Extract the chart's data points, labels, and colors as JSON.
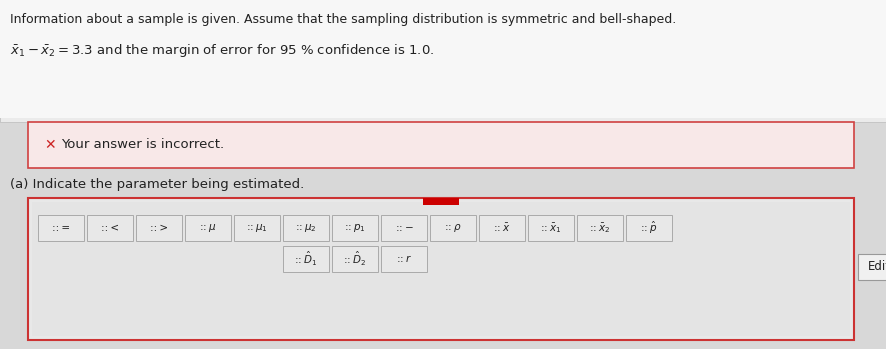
{
  "line1": "Information about a sample is given. Assume that the sampling distribution is symmetric and bell-shaped.",
  "line2_math": "$\\bar{x}_1 - \\bar{x}_2 = 3.3$ and the margin of error for 95 % confidence is 1.0.",
  "error_msg": "Your answer is incorrect.",
  "part_a": "(a) Indicate the parameter being estimated.",
  "edit_label": "Edit",
  "buttons_row1_math": [
    ":: =",
    ":: <",
    ":: >",
    ":: $\\mu$",
    ":: $\\mu_1$",
    ":: $\\mu_2$",
    ":: $p_1$",
    ":: $-$",
    ":: $\\rho$",
    ":: $\\bar{x}$",
    ":: $\\bar{x}_1$",
    ":: $\\bar{x}_2$",
    ":: $\\hat{p}$"
  ],
  "buttons_row2_math": [
    ":: $\\hat{D}_1$",
    ":: $\\hat{D}_2$",
    ":: $r$"
  ],
  "outer_bg": "#d8d8d8",
  "top_section_bg": "#e8e8e8",
  "white_bg": "#ffffff",
  "error_bg": "#f8e8e8",
  "error_border": "#d04040",
  "panel_bg": "#e8e8e8",
  "panel_border": "#cc3333",
  "inner_panel_bg": "#e0e0e0",
  "button_bg": "#e8e8e8",
  "button_border": "#aaaaaa",
  "red_bar_color": "#cc0000",
  "text_color": "#222222",
  "gray_text": "#555555",
  "cross_color": "#cc2222",
  "edit_btn_bg": "#f0f0f0",
  "edit_btn_border": "#999999"
}
